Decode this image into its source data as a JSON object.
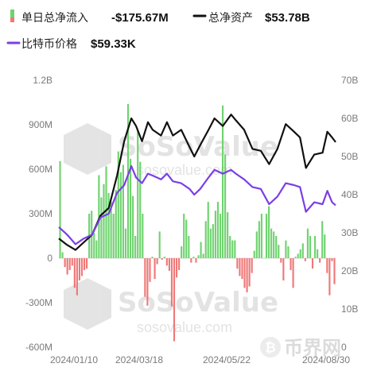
{
  "legend": {
    "flow_label": "单日总净流入",
    "flow_value": "-$175.67M",
    "assets_label": "总净资产",
    "assets_value": "$53.78B",
    "price_label": "比特币价格",
    "price_value": "$59.33K"
  },
  "watermark": {
    "brand": "SoSoValue",
    "site": "sosovalue.com",
    "corner_brand": "币界网"
  },
  "colors": {
    "inflow": "#6fd36f",
    "outflow": "#f07878",
    "assets_line": "#111111",
    "price_line": "#7b3fe4",
    "zero_line": "#dddddd"
  },
  "chart_data": {
    "type": "bar",
    "x_ticks": [
      "2024/01/10",
      "2024/03/18",
      "2024/05/22",
      "2024/08/30"
    ],
    "x_range": [
      "2024-01-10",
      "2024-08-30"
    ],
    "y_left": {
      "ticks": [
        "1.2B",
        "900M",
        "600M",
        "300M",
        "0",
        "-300M",
        "-600M"
      ],
      "range": [
        -600,
        1200
      ],
      "unit": "M"
    },
    "y_right": {
      "ticks": [
        "70B",
        "60B",
        "50B",
        "40B",
        "30B",
        "20B",
        "10B",
        "0"
      ],
      "range": [
        0,
        70
      ],
      "unit": "B"
    },
    "grid": false,
    "series": [
      {
        "name": "单日总净流入",
        "type": "bar",
        "axis": "left",
        "values": [
          655,
          40,
          -60,
          -110,
          -80,
          -50,
          -200,
          -250,
          -150,
          -120,
          -80,
          -70,
          300,
          320,
          170,
          120,
          560,
          410,
          500,
          620,
          440,
          380,
          300,
          460,
          720,
          580,
          630,
          200,
          1040,
          670,
          420,
          150,
          860,
          650,
          300,
          -260,
          -320,
          -160,
          10,
          -140,
          -40,
          180,
          -10,
          10,
          -50,
          -85,
          -325,
          -560,
          -130,
          -80,
          80,
          300,
          260,
          150,
          -30,
          10,
          -30,
          20,
          110,
          30,
          250,
          380,
          200,
          230,
          320,
          380,
          300,
          1030,
          700,
          310,
          150,
          120,
          120,
          -70,
          -120,
          -140,
          -200,
          -230,
          -190,
          -100,
          50,
          180,
          250,
          300,
          0,
          300,
          350,
          200,
          180,
          150,
          90,
          -30,
          -150,
          120,
          80,
          -80,
          -200,
          10,
          30,
          60,
          100,
          -20,
          200,
          150,
          -70,
          150,
          60,
          -30,
          250,
          160,
          -100,
          -250,
          -20,
          -175
        ]
      },
      {
        "name": "总净资产",
        "type": "line",
        "axis": "right",
        "points": [
          [
            "2024-01-10",
            28.5
          ],
          [
            "2024-01-17",
            26.8
          ],
          [
            "2024-01-24",
            25.5
          ],
          [
            "2024-01-31",
            27.5
          ],
          [
            "2024-02-07",
            29.5
          ],
          [
            "2024-02-14",
            34.5
          ],
          [
            "2024-02-21",
            36.5
          ],
          [
            "2024-02-28",
            45
          ],
          [
            "2024-03-05",
            54
          ],
          [
            "2024-03-11",
            60
          ],
          [
            "2024-03-15",
            58
          ],
          [
            "2024-03-20",
            54
          ],
          [
            "2024-03-25",
            59
          ],
          [
            "2024-03-29",
            57
          ],
          [
            "2024-04-05",
            55.5
          ],
          [
            "2024-04-10",
            59
          ],
          [
            "2024-04-15",
            55.5
          ],
          [
            "2024-04-22",
            57
          ],
          [
            "2024-04-29",
            52.5
          ],
          [
            "2024-05-03",
            50
          ],
          [
            "2024-05-08",
            53
          ],
          [
            "2024-05-15",
            57
          ],
          [
            "2024-05-20",
            60
          ],
          [
            "2024-05-27",
            58
          ],
          [
            "2024-06-03",
            61
          ],
          [
            "2024-06-07",
            59.5
          ],
          [
            "2024-06-14",
            57
          ],
          [
            "2024-06-21",
            52
          ],
          [
            "2024-06-28",
            51.5
          ],
          [
            "2024-07-05",
            48
          ],
          [
            "2024-07-12",
            52
          ],
          [
            "2024-07-19",
            58.5
          ],
          [
            "2024-07-26",
            56.5
          ],
          [
            "2024-07-31",
            55
          ],
          [
            "2024-08-05",
            47
          ],
          [
            "2024-08-12",
            50.5
          ],
          [
            "2024-08-19",
            51
          ],
          [
            "2024-08-23",
            56.5
          ],
          [
            "2024-08-27",
            55
          ],
          [
            "2024-08-30",
            53.78
          ]
        ]
      },
      {
        "name": "比特币价格",
        "type": "line",
        "axis": "right",
        "points": [
          [
            "2024-01-10",
            31.5
          ],
          [
            "2024-01-17",
            29.5
          ],
          [
            "2024-01-24",
            27
          ],
          [
            "2024-01-31",
            28.5
          ],
          [
            "2024-02-07",
            29.5
          ],
          [
            "2024-02-14",
            34
          ],
          [
            "2024-02-21",
            35
          ],
          [
            "2024-02-28",
            40.5
          ],
          [
            "2024-03-05",
            42.5
          ],
          [
            "2024-03-11",
            47.5
          ],
          [
            "2024-03-15",
            44.5
          ],
          [
            "2024-03-20",
            43
          ],
          [
            "2024-03-25",
            45.5
          ],
          [
            "2024-03-29",
            45
          ],
          [
            "2024-04-05",
            44
          ],
          [
            "2024-04-10",
            45.5
          ],
          [
            "2024-04-15",
            43.5
          ],
          [
            "2024-04-22",
            43
          ],
          [
            "2024-04-29",
            41.5
          ],
          [
            "2024-05-03",
            40
          ],
          [
            "2024-05-08",
            41.5
          ],
          [
            "2024-05-15",
            44.5
          ],
          [
            "2024-05-20",
            46.5
          ],
          [
            "2024-05-27",
            45.5
          ],
          [
            "2024-06-03",
            46.5
          ],
          [
            "2024-06-07",
            45.5
          ],
          [
            "2024-06-14",
            44
          ],
          [
            "2024-06-21",
            42
          ],
          [
            "2024-06-28",
            41.5
          ],
          [
            "2024-07-05",
            37.5
          ],
          [
            "2024-07-12",
            39.5
          ],
          [
            "2024-07-19",
            43
          ],
          [
            "2024-07-26",
            42.5
          ],
          [
            "2024-07-31",
            42
          ],
          [
            "2024-08-05",
            35.5
          ],
          [
            "2024-08-12",
            38
          ],
          [
            "2024-08-19",
            37.5
          ],
          [
            "2024-08-23",
            41
          ],
          [
            "2024-08-27",
            38
          ],
          [
            "2024-08-30",
            37.2
          ]
        ]
      }
    ]
  }
}
